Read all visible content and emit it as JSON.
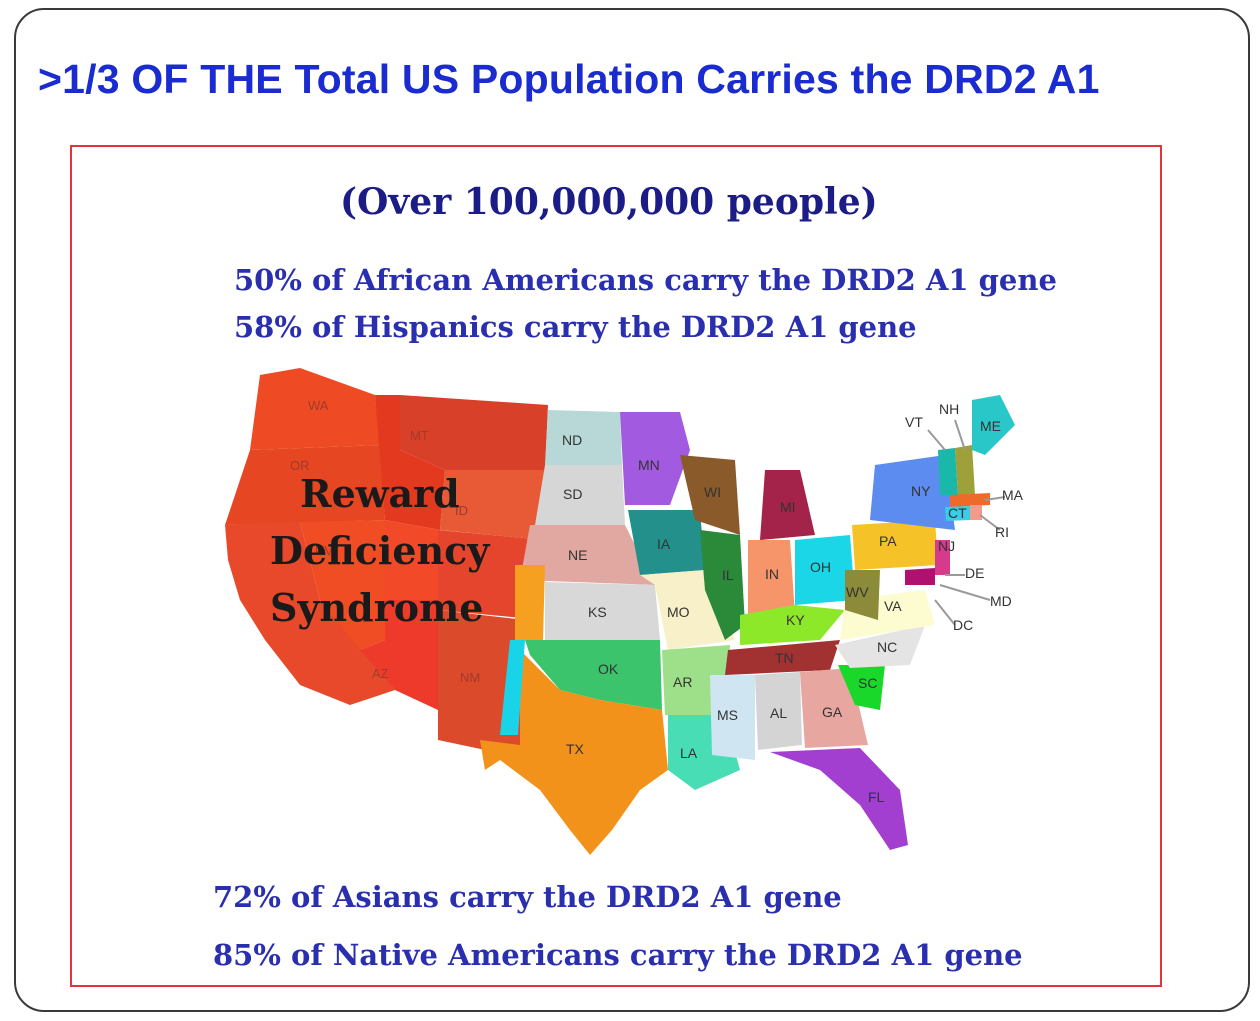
{
  "title": ">1/3 OF THE Total US Population Carries the DRD2 A1",
  "subtitle": "(Over 100,000,000 people)",
  "stats": {
    "african_americans": "50% of African Americans carry the DRD2 A1 gene",
    "hispanics": "58% of Hispanics carry the DRD2 A1 gene",
    "asians": "72% of Asians carry the DRD2 A1 gene",
    "native_americans": "85% of Native Americans carry the DRD2 A1 gene"
  },
  "map": {
    "overlay_label": [
      "Reward",
      "Deficiency",
      "Syndrome"
    ],
    "state_labels": [
      "WA",
      "OR",
      "ID",
      "MT",
      "NV",
      "UT",
      "AZ",
      "NM",
      "ND",
      "SD",
      "NE",
      "KS",
      "OK",
      "TX",
      "MN",
      "IA",
      "MO",
      "AR",
      "LA",
      "WI",
      "IL",
      "MI",
      "IN",
      "OH",
      "KY",
      "TN",
      "MS",
      "AL",
      "GA",
      "FL",
      "SC",
      "NC",
      "VA",
      "WV",
      "PA",
      "NY",
      "VT",
      "NH",
      "ME",
      "MA",
      "CT",
      "RI",
      "NJ",
      "DE",
      "MD",
      "DC"
    ],
    "colors": {
      "west": "#f04a22",
      "west_dark": "#d73a20",
      "plains_grey": "#d9d9d9",
      "accent_orange": "#f5a020"
    }
  }
}
